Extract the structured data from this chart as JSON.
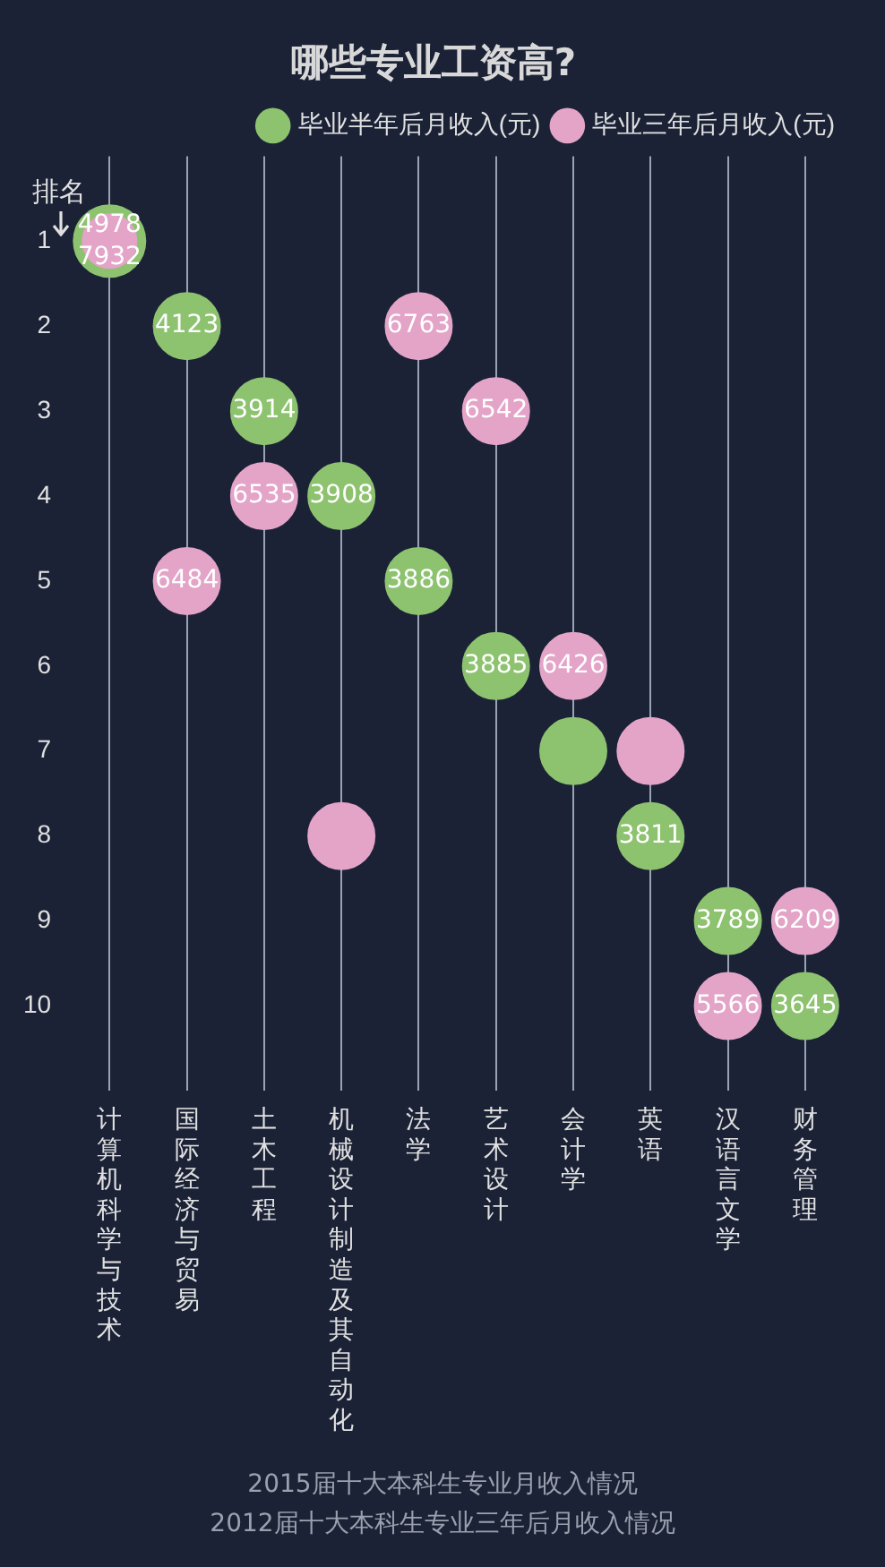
{
  "chart_data": {
    "type": "scatter",
    "title": "哪些专业工资高?",
    "ylabel": "排名",
    "categories": [
      "计算机科学与技术",
      "国际经济与贸易",
      "土木工程",
      "机械设计制造及其自动化",
      "法学",
      "艺术设计",
      "会计学",
      "英语",
      "汉语言文学",
      "财务管理"
    ],
    "series": [
      {
        "name": "毕业半年后月收入(元)",
        "color": "#8dc26f",
        "values": [
          1,
          2,
          3,
          4,
          5,
          6,
          7,
          8,
          9,
          10
        ]
      },
      {
        "name": "毕业三年后月收入(元)",
        "color": "#e3a4c8",
        "values": [
          1,
          5,
          4,
          8,
          2,
          3,
          6,
          7,
          10,
          9
        ]
      }
    ],
    "ylim": [
      11,
      0
    ],
    "yticks": [
      1,
      2,
      3,
      4,
      5,
      6,
      7,
      8,
      9,
      10
    ],
    "grid": "x",
    "legend": "top right",
    "marker": "circle",
    "annotations": [
      {
        "text": "4978",
        "x": "计算机科学与技术",
        "y": 1
      },
      {
        "text": "7932",
        "x": "计算机科学与技术",
        "y": 1
      },
      {
        "text": "4123",
        "x": "国际经济与贸易",
        "y": 2
      },
      {
        "text": "3914",
        "x": "土木工程",
        "y": 3
      },
      {
        "text": "3908",
        "x": "机械设计制造及其自动化",
        "y": 4
      },
      {
        "text": "3886",
        "x": "法学",
        "y": 5
      },
      {
        "text": "3885",
        "x": "艺术设计",
        "y": 6
      },
      {
        "text": "3811",
        "x": "英语",
        "y": 8
      },
      {
        "text": "3789",
        "x": "汉语言文学",
        "y": 9
      },
      {
        "text": "3645",
        "x": "财务管理",
        "y": 10
      },
      {
        "text": "6484",
        "x": "国际经济与贸易",
        "y": 5
      },
      {
        "text": "6535",
        "x": "土木工程",
        "y": 4
      },
      {
        "text": "6763",
        "x": "法学",
        "y": 2
      },
      {
        "text": "6542",
        "x": "艺术设计",
        "y": 3
      },
      {
        "text": "6426",
        "x": "会计学",
        "y": 6
      },
      {
        "text": "5566",
        "x": "汉语言文学",
        "y": 10
      },
      {
        "text": "6209",
        "x": "财务管理",
        "y": 9
      },
      "2015届十大本科生专业月收入情况",
      "2012届十大本科生专业三年后月收入情况"
    ]
  }
}
